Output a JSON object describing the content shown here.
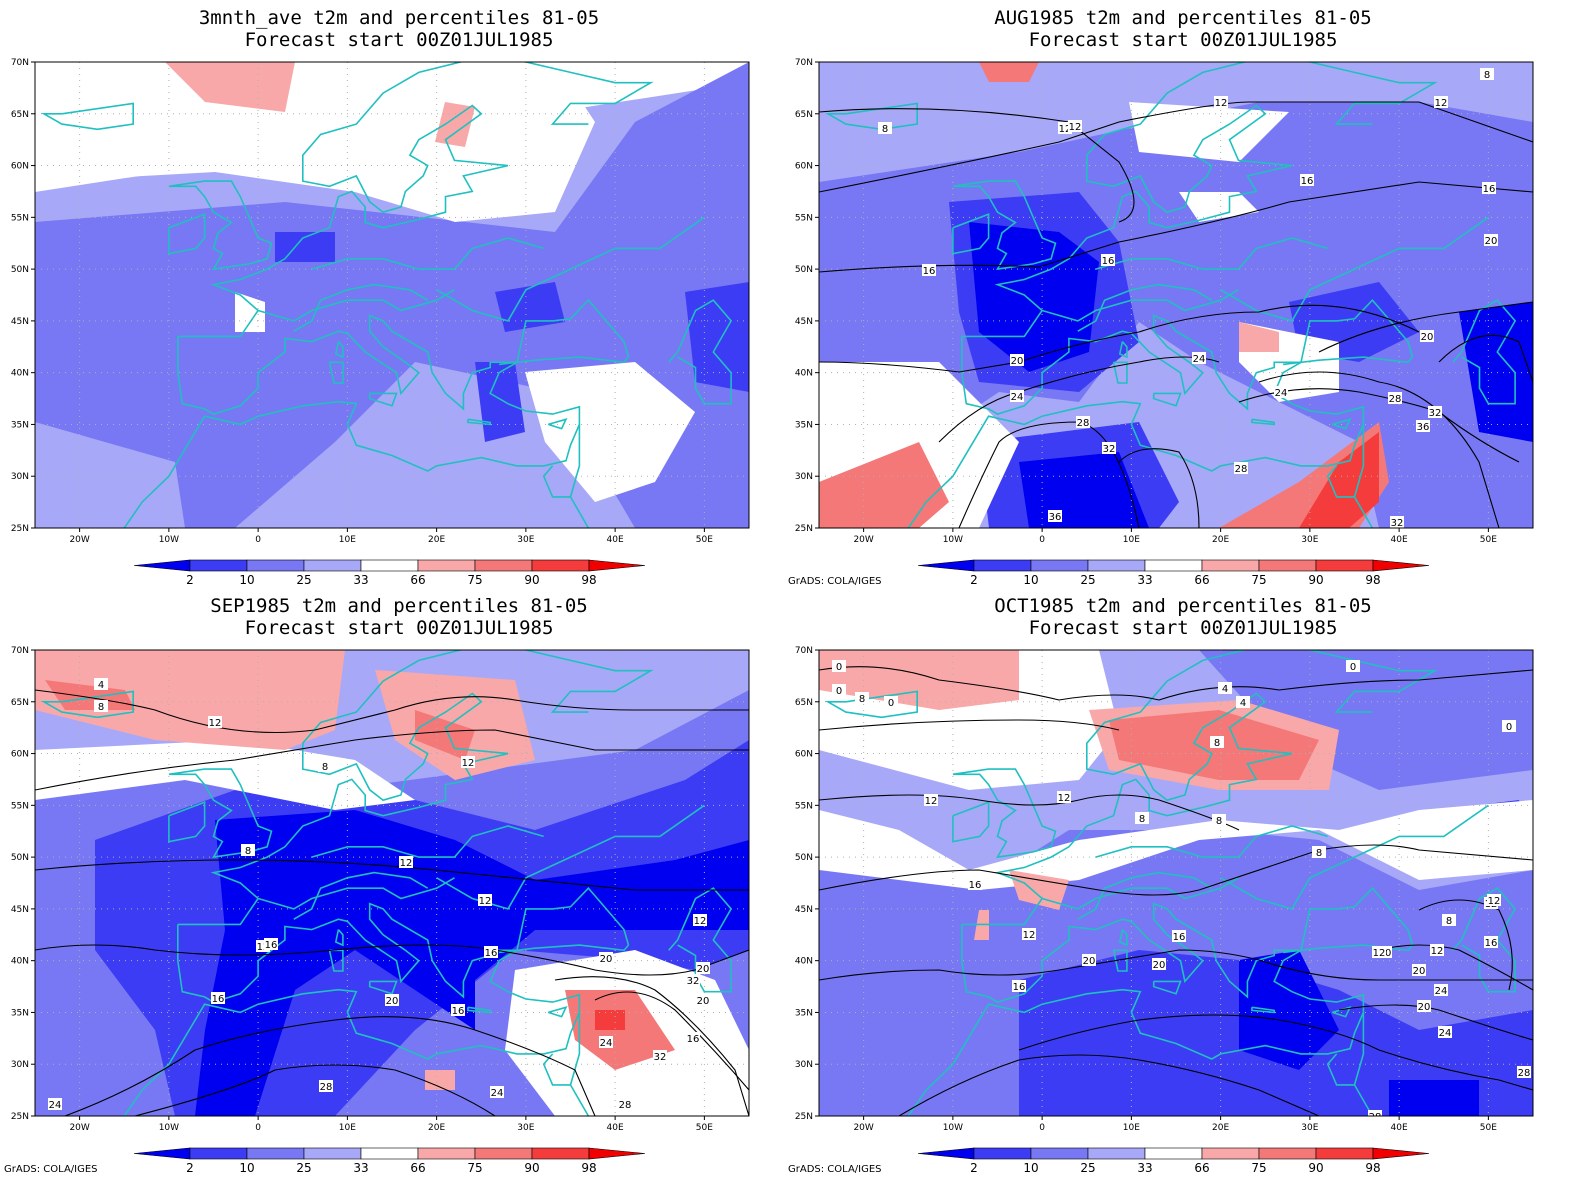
{
  "panels": [
    {
      "id": "3mnth",
      "title_line1": "3mnth_ave t2m and percentiles 81-05",
      "title_line2": "Forecast start 00Z01JUL1985",
      "credit": "",
      "contour_labels": []
    },
    {
      "id": "aug",
      "title_line1": "AUG1985 t2m and percentiles 81-05",
      "title_line2": "Forecast start 00Z01JUL1985",
      "credit": "GrADS: COLA/IGES",
      "contour_labels": [
        "8",
        "12",
        "12",
        "12",
        "16",
        "16",
        "16",
        "16",
        "20",
        "20",
        "20",
        "24",
        "24",
        "24",
        "28",
        "28",
        "32",
        "32",
        "36",
        "28",
        "36",
        "32",
        "12",
        "8"
      ]
    },
    {
      "id": "sep",
      "title_line1": "SEP1985 t2m and percentiles 81-05",
      "title_line2": "Forecast start 00Z01JUL1985",
      "credit": "GrADS: COLA/IGES",
      "contour_labels": [
        "4",
        "8",
        "8",
        "12",
        "12",
        "8",
        "12",
        "12",
        "12",
        "12",
        "16",
        "16",
        "16",
        "20",
        "16",
        "20",
        "20",
        "24",
        "24",
        "28",
        "32",
        "32",
        "28",
        "20",
        "16",
        "24"
      ]
    },
    {
      "id": "oct",
      "title_line1": "OCT1985 t2m and percentiles 81-05",
      "title_line2": "Forecast start 00Z01JUL1985",
      "credit": "GrADS: COLA/IGES",
      "contour_labels": [
        "0",
        "0",
        "4",
        "8",
        "0",
        "4",
        "8",
        "0",
        "12",
        "12",
        "8",
        "8",
        "8",
        "16",
        "12",
        "16",
        "12",
        "20",
        "20",
        "16",
        "20",
        "12",
        "20",
        "24",
        "12",
        "16",
        "8",
        "12",
        "20",
        "24",
        "28",
        "28",
        "0"
      ]
    }
  ],
  "axes": {
    "lat_labels": [
      "70N",
      "65N",
      "60N",
      "55N",
      "50N",
      "45N",
      "40N",
      "35N",
      "30N",
      "25N"
    ],
    "lon_labels": [
      "20W",
      "10W",
      "0",
      "10E",
      "20E",
      "30E",
      "40E",
      "50E"
    ]
  },
  "colorbar": {
    "tick_labels": [
      "2",
      "10",
      "25",
      "33",
      "66",
      "75",
      "90",
      "98"
    ],
    "colors": [
      "#0000f0",
      "#3c3cf5",
      "#7878f5",
      "#a8a8f8",
      "#ffffff",
      "#f8a8a8",
      "#f57878",
      "#f53c3c",
      "#f00000"
    ]
  },
  "map_colors": {
    "coast": "#20c0c0",
    "contour": "#000000",
    "grid": "#b0b0b0"
  }
}
